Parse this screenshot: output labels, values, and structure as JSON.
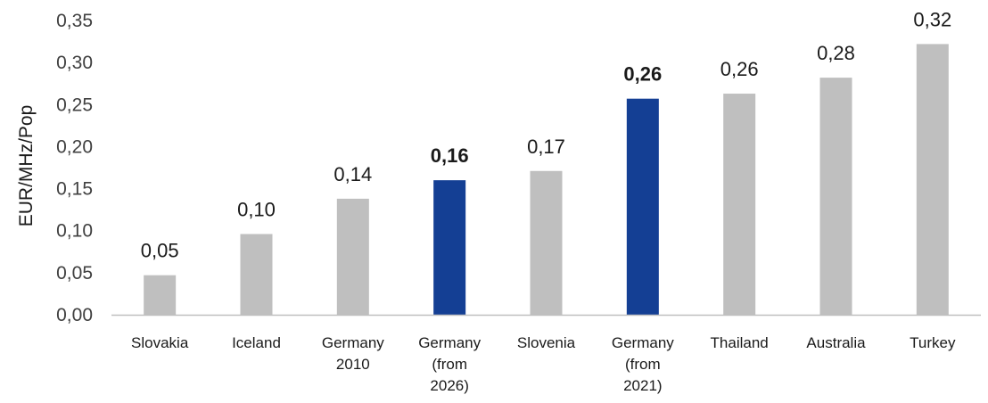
{
  "chart_data": {
    "type": "bar",
    "title": "",
    "xlabel": "",
    "ylabel": "EUR/MHz/Pop",
    "ylim": [
      0,
      0.35
    ],
    "ytick_values": [
      0,
      0.05,
      0.1,
      0.15,
      0.2,
      0.25,
      0.3,
      0.35
    ],
    "yticks": [
      "0,00",
      "0,05",
      "0,10",
      "0,15",
      "0,20",
      "0,25",
      "0,30",
      "0,35"
    ],
    "grid": false,
    "legend": "none",
    "categories": [
      [
        "Slovakia"
      ],
      [
        "Iceland"
      ],
      [
        "Germany",
        "2010"
      ],
      [
        "Germany",
        "(from",
        "2026)"
      ],
      [
        "Slovenia"
      ],
      [
        "Germany",
        "(from",
        "2021)"
      ],
      [
        "Thailand"
      ],
      [
        "Australia"
      ],
      [
        "Turkey"
      ]
    ],
    "values": [
      0.047,
      0.096,
      0.138,
      0.16,
      0.171,
      0.257,
      0.263,
      0.282,
      0.322
    ],
    "data_labels": [
      "0,05",
      "0,10",
      "0,14",
      "0,16",
      "0,17",
      "0,26",
      "0,26",
      "0,28",
      "0,32"
    ],
    "highlighted": [
      false,
      false,
      false,
      true,
      false,
      true,
      false,
      false,
      false
    ],
    "colors": {
      "default": "#BFBFBF",
      "highlight": "#143F94",
      "axis": "#BFBFBF",
      "text": "#1a1a1a",
      "tick": "#404040"
    }
  }
}
